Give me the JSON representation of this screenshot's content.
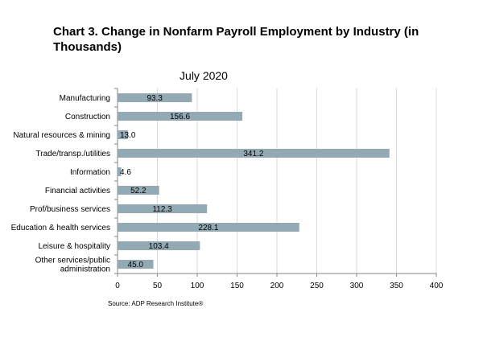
{
  "chart_data": {
    "type": "bar",
    "orientation": "horizontal",
    "title": "Chart 3. Change in Nonfarm Payroll Employment by Industry (in Thousands)",
    "subtitle": "July 2020",
    "source": "Source: ADP Research Institute®",
    "categories": [
      "Manufacturing",
      "Construction",
      "Natural resources & mining",
      "Trade/transp./utilities",
      "Information",
      "Financial activities",
      "Prof/business services",
      "Education & health services",
      "Leisure & hospitality",
      [
        "Other services/public",
        "administration"
      ]
    ],
    "values": [
      93.3,
      156.6,
      13.0,
      341.2,
      4.6,
      52.2,
      112.3,
      228.1,
      103.4,
      45.0
    ],
    "value_labels": [
      "93.3",
      "156.6",
      "13.0",
      "341.2",
      "4.6",
      "52.2",
      "112.3",
      "228.1",
      "103.4",
      "45.0"
    ],
    "xlim": [
      0,
      400
    ],
    "xticks": [
      0,
      50,
      100,
      150,
      200,
      250,
      300,
      350,
      400
    ],
    "grid": "vertical",
    "bar_color": "#93a9b3",
    "grid_color": "#d9d9d9"
  }
}
